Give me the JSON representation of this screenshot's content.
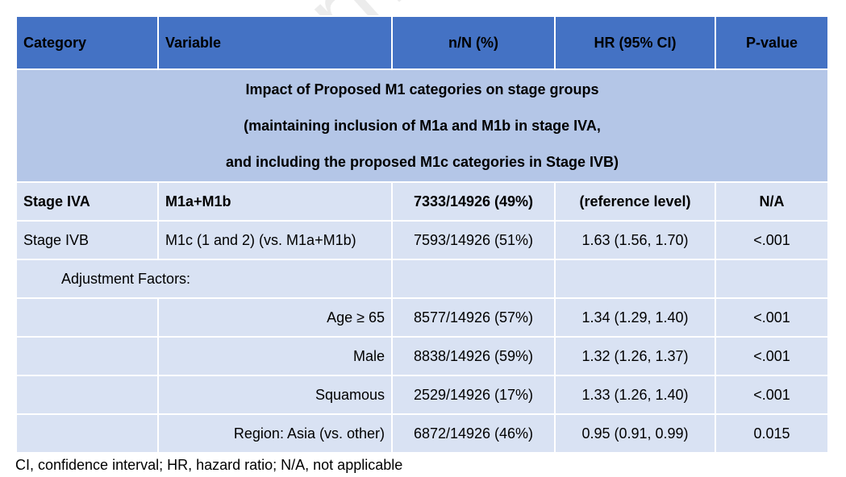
{
  "watermark": "Journal Pre-proof",
  "headers": [
    "Category",
    "Variable",
    "n/N (%)",
    "HR (95% CI)",
    "P-value"
  ],
  "band_lines": [
    "Impact of Proposed M1 categories on stage groups",
    "(maintaining inclusion of M1a and M1b in stage IVA,",
    "and including the proposed M1c categories in Stage IVB)"
  ],
  "rows": [
    {
      "category": "Stage IVA",
      "variable": "M1a+M1b",
      "n": "7333/14926 (49%)",
      "hr": "(reference level)",
      "p": "N/A"
    },
    {
      "category": "Stage IVB",
      "variable": "M1c (1 and 2) (vs. M1a+M1b)",
      "n": "7593/14926 (51%)",
      "hr": "1.63 (1.56, 1.70)",
      "p": "<.001"
    },
    {
      "category": "Adjustment Factors:",
      "variable": "",
      "n": "",
      "hr": "",
      "p": ""
    },
    {
      "category": "",
      "variable": "Age ≥ 65",
      "n": "8577/14926 (57%)",
      "hr": "1.34 (1.29, 1.40)",
      "p": "<.001"
    },
    {
      "category": "",
      "variable": "Male",
      "n": "8838/14926 (59%)",
      "hr": "1.32 (1.26, 1.37)",
      "p": "<.001"
    },
    {
      "category": "",
      "variable": "Squamous",
      "n": "2529/14926 (17%)",
      "hr": "1.33 (1.26, 1.40)",
      "p": "<.001"
    },
    {
      "category": "",
      "variable": "Region: Asia (vs. other)",
      "n": "6872/14926 (46%)",
      "hr": "0.95 (0.91, 0.99)",
      "p": "0.015"
    }
  ],
  "footnote": "CI, confidence interval;   HR, hazard ratio;   N/A, not applicable",
  "colors": {
    "header": "#4472c4",
    "band": "#b4c6e7",
    "row": "#d9e2f3"
  }
}
